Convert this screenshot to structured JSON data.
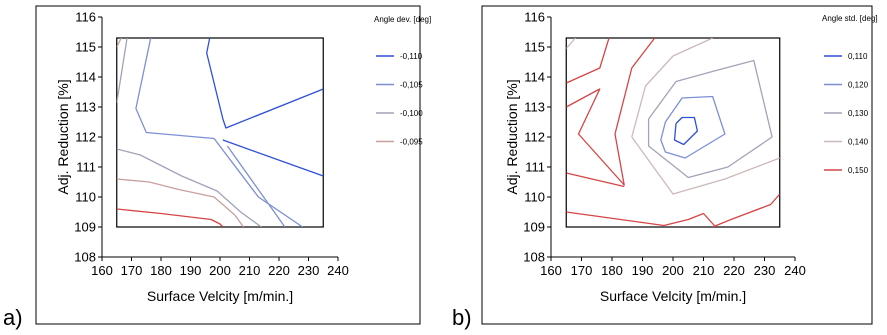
{
  "chart_data": [
    {
      "type": "contour",
      "panel_tag": "a)",
      "title": "",
      "xlabel": "Surface Velcity [m/min.]",
      "ylabel": "Adj. Reduction [%]",
      "xlim": [
        160,
        240
      ],
      "ylim": [
        108,
        116
      ],
      "x_ticks": [
        "160",
        "170",
        "180",
        "190",
        "200",
        "210",
        "220",
        "230",
        "240"
      ],
      "y_ticks": [
        "108",
        "109",
        "110",
        "111",
        "112",
        "113",
        "114",
        "115",
        "116"
      ],
      "data_region": {
        "x": [
          165,
          235
        ],
        "y": [
          109,
          115.3
        ]
      },
      "legend": {
        "title": "Angle dev. [deg]",
        "placement": "right"
      },
      "series": [
        {
          "name": "-0,110",
          "color": "#2f4fd8",
          "lines": [
            [
              [
                196.5,
                115.3
              ],
              [
                195.5,
                114.8
              ],
              [
                201,
                112.6
              ],
              [
                202,
                112.3
              ],
              [
                235,
                113.6
              ]
            ],
            [
              [
                201,
                111.9
              ],
              [
                235,
                110.7
              ]
            ]
          ]
        },
        {
          "name": "-0,105",
          "color": "#7d8fd6",
          "lines": [
            [
              [
                176.5,
                115.3
              ],
              [
                171.5,
                112.95
              ],
              [
                175,
                112.15
              ],
              [
                198,
                111.95
              ],
              [
                213,
                110
              ],
              [
                228,
                109
              ]
            ],
            [
              [
                202.5,
                111.7
              ],
              [
                222,
                109
              ]
            ]
          ]
        },
        {
          "name": "-0,100",
          "color": "#a3a3b7",
          "lines": [
            [
              [
                165,
                113.15
              ],
              [
                168.5,
                115.3
              ]
            ],
            [
              [
                165,
                111.6
              ],
              [
                173,
                111.4
              ],
              [
                187,
                110.7
              ],
              [
                199,
                110.2
              ],
              [
                207,
                109.5
              ],
              [
                214,
                109
              ]
            ]
          ]
        },
        {
          "name": "-0,095",
          "color": "#c9a0a0",
          "lines": [
            [
              [
                165,
                115
              ],
              [
                166.5,
                115.3
              ]
            ],
            [
              [
                165,
                110.6
              ],
              [
                176,
                110.5
              ],
              [
                186,
                110.25
              ],
              [
                198,
                110
              ],
              [
                205,
                109.4
              ],
              [
                208,
                109
              ]
            ]
          ]
        },
        {
          "name": "",
          "color": "#d64545",
          "lines": [
            [
              [
                165,
                109.6
              ],
              [
                180,
                109.45
              ],
              [
                197,
                109.25
              ],
              [
                200,
                109.1
              ],
              [
                201,
                109
              ]
            ]
          ]
        }
      ]
    },
    {
      "type": "contour",
      "panel_tag": "b)",
      "title": "",
      "xlabel": "Surface Velcity [m/min.]",
      "ylabel": "Adj. Reduction [%]",
      "xlim": [
        160,
        240
      ],
      "ylim": [
        108,
        116
      ],
      "x_ticks": [
        "160",
        "170",
        "180",
        "190",
        "200",
        "210",
        "220",
        "230",
        "240"
      ],
      "y_ticks": [
        "108",
        "109",
        "110",
        "111",
        "112",
        "113",
        "114",
        "115",
        "116"
      ],
      "data_region": {
        "x": [
          165,
          235
        ],
        "y": [
          109,
          115.3
        ]
      },
      "legend": {
        "title": "Angle std. [deg]",
        "placement": "right"
      },
      "series": [
        {
          "name": "0,110",
          "color": "#2f4fd8",
          "lines": [
            [
              [
                201,
                112.45
              ],
              [
                203,
                112.65
              ],
              [
                207,
                112.65
              ],
              [
                208,
                112.2
              ],
              [
                203.5,
                111.75
              ],
              [
                200.5,
                111.9
              ],
              [
                201,
                112.45
              ]
            ]
          ]
        },
        {
          "name": "0,120",
          "color": "#7d8fd6",
          "lines": [
            [
              [
                197.5,
                112.5
              ],
              [
                203,
                113.3
              ],
              [
                213,
                113.35
              ],
              [
                217,
                112.1
              ],
              [
                204,
                111.3
              ],
              [
                197.5,
                111.5
              ],
              [
                196,
                111.9
              ],
              [
                197.5,
                112.5
              ]
            ]
          ]
        },
        {
          "name": "0,130",
          "color": "#a3a3b7",
          "lines": [
            [
              [
                192,
                112.6
              ],
              [
                201,
                113.85
              ],
              [
                213.5,
                114.2
              ],
              [
                226.5,
                114.55
              ],
              [
                232.5,
                112
              ],
              [
                218,
                111
              ],
              [
                205,
                110.65
              ],
              [
                192,
                111.7
              ],
              [
                192,
                112.6
              ]
            ]
          ]
        },
        {
          "name": "0,140",
          "color": "#cdb8b8",
          "lines": [
            [
              [
                186.5,
                112
              ],
              [
                191,
                113.7
              ],
              [
                200,
                114.7
              ],
              [
                213,
                115.3
              ]
            ],
            [
              [
                186.5,
                112
              ],
              [
                200,
                110.1
              ],
              [
                217,
                110.6
              ],
              [
                235,
                111.3
              ]
            ],
            [
              [
                165,
                114.95
              ],
              [
                168,
                115.3
              ]
            ]
          ]
        },
        {
          "name": "0,150",
          "color": "#d64545",
          "lines": [
            [
              [
                165,
                113.8
              ],
              [
                176,
                114.3
              ],
              [
                179,
                115.3
              ]
            ],
            [
              [
                165,
                113
              ],
              [
                175,
                113.55
              ],
              [
                176,
                113.6
              ],
              [
                169,
                112.1
              ],
              [
                184,
                110.4
              ],
              [
                181,
                112.1
              ],
              [
                186.5,
                114.3
              ],
              [
                194,
                115.3
              ]
            ],
            [
              [
                165,
                110.8
              ],
              [
                184,
                110.35
              ]
            ],
            [
              [
                165,
                109.5
              ],
              [
                197,
                109.05
              ],
              [
                205,
                109.25
              ],
              [
                210,
                109.45
              ],
              [
                214,
                109
              ]
            ],
            [
              [
                213,
                109
              ],
              [
                219,
                109.25
              ],
              [
                232,
                109.75
              ],
              [
                235,
                110.1
              ]
            ]
          ]
        }
      ]
    }
  ]
}
